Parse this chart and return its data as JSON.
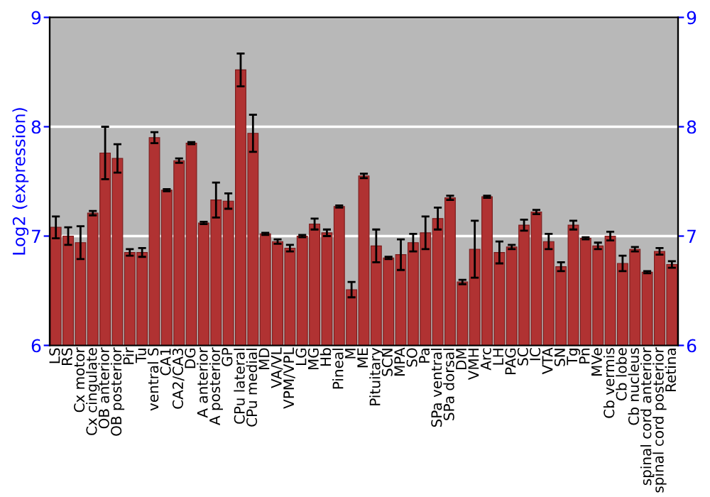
{
  "chart_data": {
    "type": "bar",
    "ylabel": "Log2 (expression)",
    "categories": [
      "LS",
      "RS",
      "Cx motor",
      "Cx cingulate",
      "OB anterior",
      "OB posterior",
      "Pir",
      "Tu",
      "ventral S",
      "CA1",
      "CA2/CA3",
      "DG",
      "A anterior",
      "A posterior",
      "GP",
      "CPu lateral",
      "CPu medial",
      "MD",
      "VA/VL",
      "VPM/VPL",
      "LG",
      "MG",
      "Hb",
      "Pineal",
      "M",
      "ME",
      "Pituitary",
      "SCN",
      "MPA",
      "SO",
      "Pa",
      "SPa ventral",
      "SPa dorsal",
      "DM",
      "VMH",
      "Arc",
      "LH",
      "PAG",
      "SC",
      "IC",
      "VTA",
      "SN",
      "Tg",
      "Pn",
      "MVe",
      "Cb vermis",
      "Cb lobe",
      "Cb nucleus",
      "spinal cord anterior",
      "spinal cord posterior",
      "Retina"
    ],
    "values": [
      7.08,
      7.0,
      6.94,
      7.21,
      7.76,
      7.71,
      6.85,
      6.85,
      7.9,
      7.42,
      7.69,
      7.85,
      7.12,
      7.33,
      7.32,
      8.52,
      7.94,
      7.02,
      6.95,
      6.89,
      7.0,
      7.11,
      7.03,
      7.27,
      6.51,
      7.55,
      6.91,
      6.8,
      6.83,
      6.94,
      7.03,
      7.16,
      7.35,
      6.58,
      6.88,
      7.36,
      6.85,
      6.9,
      7.1,
      7.22,
      6.95,
      6.72,
      7.1,
      6.98,
      6.91,
      7.0,
      6.75,
      6.88,
      6.67,
      6.86,
      6.74
    ],
    "errors": [
      0.1,
      0.08,
      0.15,
      0.02,
      0.24,
      0.13,
      0.03,
      0.04,
      0.05,
      0.01,
      0.02,
      0.01,
      0.01,
      0.16,
      0.07,
      0.15,
      0.17,
      0.01,
      0.02,
      0.03,
      0.01,
      0.05,
      0.03,
      0.01,
      0.07,
      0.02,
      0.15,
      0.01,
      0.14,
      0.08,
      0.15,
      0.1,
      0.02,
      0.02,
      0.26,
      0.01,
      0.1,
      0.02,
      0.05,
      0.02,
      0.07,
      0.04,
      0.04,
      0.01,
      0.03,
      0.04,
      0.07,
      0.02,
      0.01,
      0.03,
      0.03
    ],
    "color": "#b03232",
    "ylim": [
      6,
      9
    ],
    "yticks": [
      6,
      7,
      8,
      9
    ],
    "y2lim": [
      6,
      9
    ],
    "y2ticks": [
      6,
      7,
      8,
      9
    ],
    "grid": "y"
  }
}
